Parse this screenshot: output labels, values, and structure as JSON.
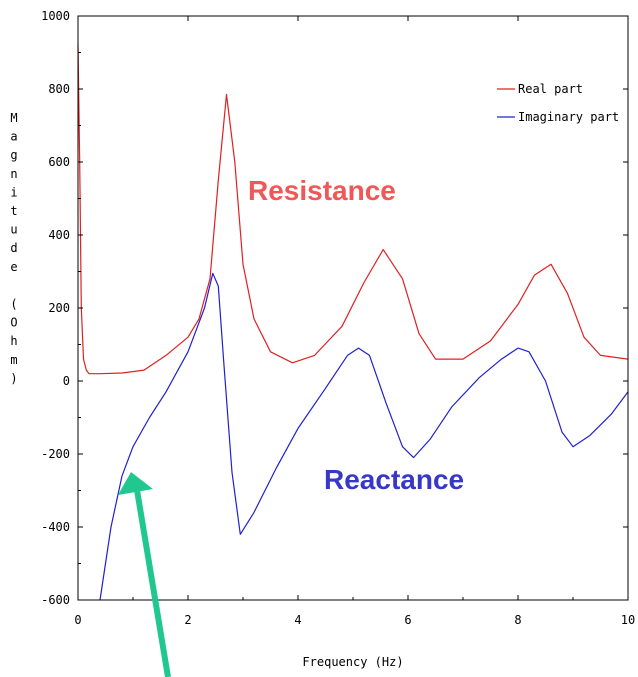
{
  "chart_data": {
    "type": "line",
    "xlabel": "Frequency (Hz)",
    "ylabel": "Magnitude (Ohm)",
    "xlim": [
      0,
      10
    ],
    "ylim": [
      -600,
      1000
    ],
    "x_ticks": [
      "0",
      "2",
      "4",
      "6",
      "8",
      "10"
    ],
    "y_ticks": [
      "1000",
      "800",
      "600",
      "400",
      "200",
      "0",
      "-200",
      "-400",
      "-600"
    ],
    "legend_position": "top-right",
    "series": [
      {
        "name": "Real part",
        "color": "#e02020",
        "points": [
          [
            0.0,
            920
          ],
          [
            0.03,
            600
          ],
          [
            0.06,
            200
          ],
          [
            0.1,
            60
          ],
          [
            0.15,
            30
          ],
          [
            0.2,
            20
          ],
          [
            0.4,
            20
          ],
          [
            0.8,
            22
          ],
          [
            1.2,
            30
          ],
          [
            1.6,
            70
          ],
          [
            2.0,
            120
          ],
          [
            2.2,
            170
          ],
          [
            2.4,
            280
          ],
          [
            2.55,
            550
          ],
          [
            2.7,
            785
          ],
          [
            2.85,
            600
          ],
          [
            3.0,
            320
          ],
          [
            3.2,
            170
          ],
          [
            3.5,
            80
          ],
          [
            3.9,
            50
          ],
          [
            4.3,
            70
          ],
          [
            4.8,
            150
          ],
          [
            5.2,
            270
          ],
          [
            5.55,
            360
          ],
          [
            5.9,
            280
          ],
          [
            6.2,
            130
          ],
          [
            6.5,
            60
          ],
          [
            7.0,
            60
          ],
          [
            7.5,
            110
          ],
          [
            8.0,
            210
          ],
          [
            8.3,
            290
          ],
          [
            8.6,
            320
          ],
          [
            8.9,
            240
          ],
          [
            9.2,
            120
          ],
          [
            9.5,
            70
          ],
          [
            10.0,
            60
          ]
        ]
      },
      {
        "name": "Imaginary part",
        "color": "#2020d0",
        "points": [
          [
            0.4,
            -600
          ],
          [
            0.6,
            -400
          ],
          [
            0.8,
            -260
          ],
          [
            1.0,
            -180
          ],
          [
            1.3,
            -100
          ],
          [
            1.6,
            -30
          ],
          [
            2.0,
            80
          ],
          [
            2.3,
            200
          ],
          [
            2.45,
            295
          ],
          [
            2.55,
            260
          ],
          [
            2.65,
            50
          ],
          [
            2.8,
            -250
          ],
          [
            2.95,
            -420
          ],
          [
            3.2,
            -360
          ],
          [
            3.6,
            -240
          ],
          [
            4.0,
            -130
          ],
          [
            4.5,
            -20
          ],
          [
            4.9,
            70
          ],
          [
            5.1,
            90
          ],
          [
            5.3,
            70
          ],
          [
            5.6,
            -60
          ],
          [
            5.9,
            -180
          ],
          [
            6.1,
            -210
          ],
          [
            6.4,
            -160
          ],
          [
            6.8,
            -70
          ],
          [
            7.3,
            10
          ],
          [
            7.7,
            60
          ],
          [
            8.0,
            90
          ],
          [
            8.2,
            80
          ],
          [
            8.5,
            0
          ],
          [
            8.8,
            -140
          ],
          [
            9.0,
            -180
          ],
          [
            9.3,
            -150
          ],
          [
            9.7,
            -90
          ],
          [
            10.0,
            -30
          ]
        ]
      }
    ],
    "annotations": [
      {
        "text": "Resistance",
        "color": "#f05858"
      },
      {
        "text": "Reactance",
        "color": "#3838c8"
      }
    ],
    "arrow_color": "#20c890"
  }
}
